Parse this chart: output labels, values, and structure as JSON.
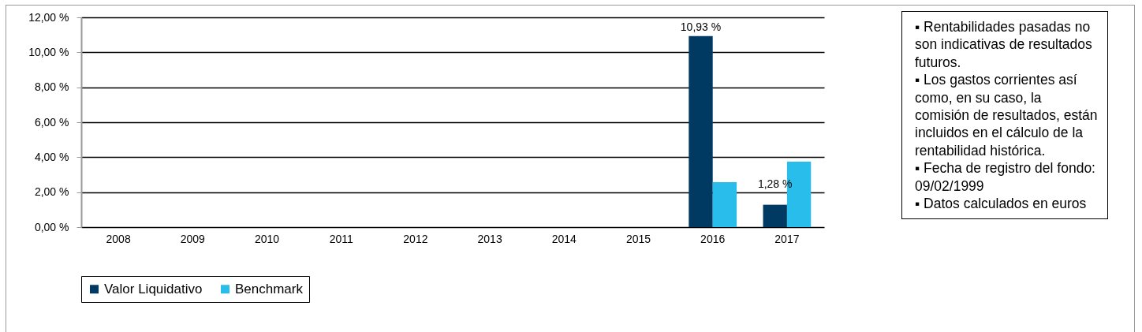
{
  "chart_data": {
    "type": "bar",
    "categories": [
      "2008",
      "2009",
      "2010",
      "2011",
      "2012",
      "2013",
      "2014",
      "2015",
      "2016",
      "2017"
    ],
    "series": [
      {
        "name": "Valor Liquidativo",
        "color": "#003a63",
        "values": [
          null,
          null,
          null,
          null,
          null,
          null,
          null,
          null,
          10.93,
          1.28
        ],
        "value_labels": [
          null,
          null,
          null,
          null,
          null,
          null,
          null,
          null,
          "10,93 %",
          "1,28 %"
        ]
      },
      {
        "name": "Benchmark",
        "color": "#29bdec",
        "values": [
          null,
          null,
          null,
          null,
          null,
          null,
          null,
          null,
          2.57,
          3.75
        ]
      }
    ],
    "ylim": [
      0,
      12
    ],
    "yticks": [
      {
        "value": 0,
        "label": "0,00 %"
      },
      {
        "value": 2,
        "label": "2,00 %"
      },
      {
        "value": 4,
        "label": "4,00 %"
      },
      {
        "value": 6,
        "label": "6,00 %"
      },
      {
        "value": 8,
        "label": "8,00 %"
      },
      {
        "value": 10,
        "label": "10,00 %"
      },
      {
        "value": 12,
        "label": "12,00 %"
      }
    ],
    "grid": "y",
    "legend": "bottom",
    "annotations": [
      "▪ Rentabilidades pasadas no son indicativas de resultados futuros.",
      "▪ Los gastos corrientes así como, en su caso, la comisión de resultados, están incluidos en el cálculo de la rentabilidad histórica.",
      "▪ Fecha de registro del fondo: 09/02/1999",
      "▪ Datos calculados en euros"
    ]
  }
}
